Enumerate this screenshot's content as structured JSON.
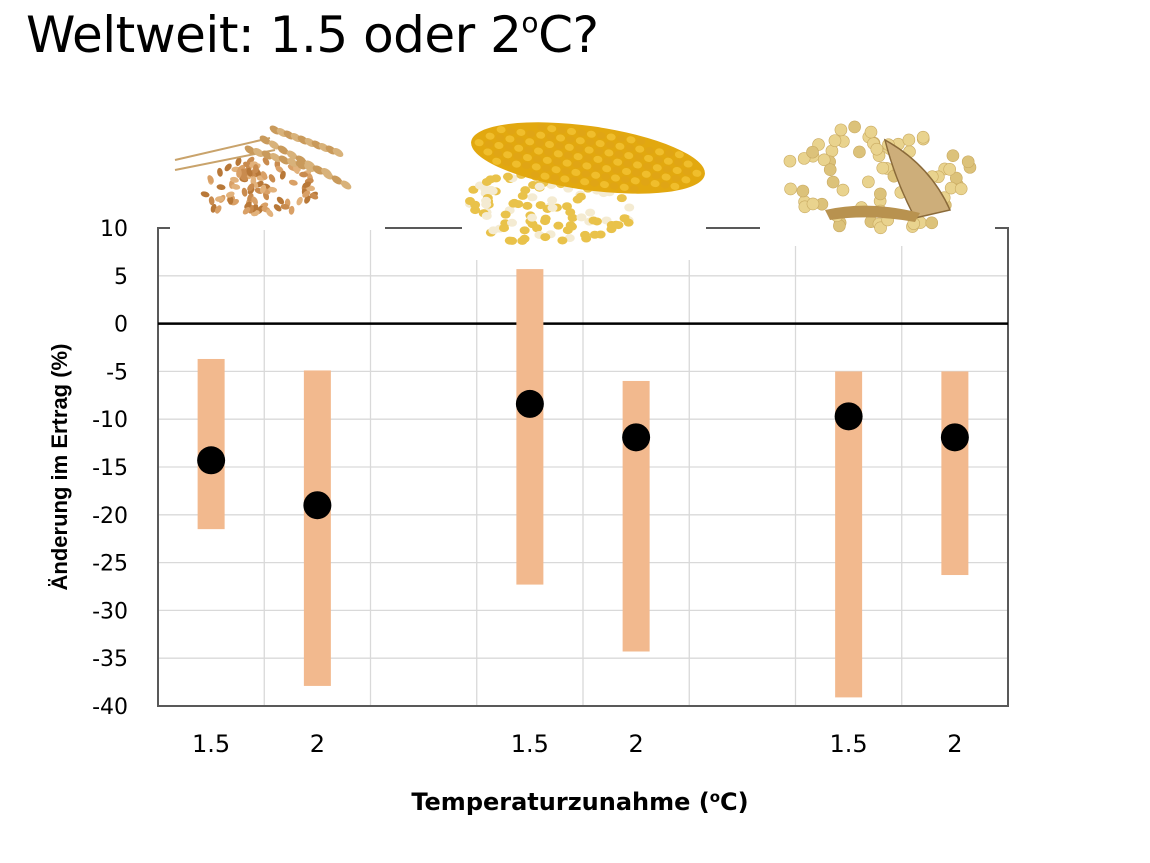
{
  "slide": {
    "title_main": "Weltweit: 1.5 oder 2",
    "title_sup": "o",
    "title_tail": "C?"
  },
  "crops": [
    {
      "name": "Weizen",
      "icon": "wheat-image"
    },
    {
      "name": "Mais",
      "icon": "maize-image"
    },
    {
      "name": "Soja",
      "icon": "soybean-image"
    }
  ],
  "colors": {
    "range_bar": "#F2B98E",
    "mean_dot": "#000000",
    "zero_line": "#000000",
    "grid": "#D9D9D9",
    "axis": "#595959"
  },
  "chart_data": {
    "type": "scatter",
    "subtype": "range-bars-with-mean-markers",
    "title": "Weltweit: 1.5 oder 2°C?",
    "xlabel": "Temperaturzunahme (°C)",
    "ylabel": "Änderung im Ertrag (%)",
    "ylim": [
      -40,
      10
    ],
    "yticks": [
      10,
      5,
      0,
      -5,
      -10,
      -15,
      -20,
      -25,
      -30,
      -35,
      -40
    ],
    "grid": true,
    "reference_line": 0,
    "groups": [
      "Weizen",
      "Mais",
      "Soja"
    ],
    "categories": [
      "1.5",
      "2",
      "",
      "1.5",
      "2",
      "",
      "1.5",
      "2"
    ],
    "series": [
      {
        "group": "Weizen",
        "x": "1.5",
        "slot": 0,
        "mean": -14.3,
        "low": -21.5,
        "high": -3.7
      },
      {
        "group": "Weizen",
        "x": "2",
        "slot": 1,
        "mean": -19.0,
        "low": -37.9,
        "high": -4.9
      },
      {
        "group": "Mais",
        "x": "1.5",
        "slot": 3,
        "mean": -8.4,
        "low": -27.3,
        "high": 5.7
      },
      {
        "group": "Mais",
        "x": "2",
        "slot": 4,
        "mean": -11.9,
        "low": -34.3,
        "high": -6.0
      },
      {
        "group": "Soja",
        "x": "1.5",
        "slot": 6,
        "mean": -9.7,
        "low": -39.1,
        "high": -5.0
      },
      {
        "group": "Soja",
        "x": "2",
        "slot": 7,
        "mean": -11.9,
        "low": -26.3,
        "high": -5.0
      }
    ]
  }
}
